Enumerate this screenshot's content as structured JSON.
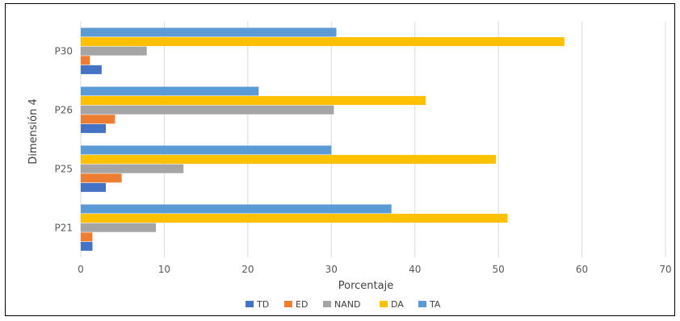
{
  "chart_data": {
    "type": "bar",
    "orientation": "horizontal",
    "title": "",
    "xlabel": "Porcentaje",
    "ylabel": "Dimensión 4",
    "xlim": [
      0,
      70
    ],
    "xticks": [
      "0",
      "10",
      "20",
      "30",
      "40",
      "50",
      "60",
      "70"
    ],
    "categories": [
      "P21",
      "P25",
      "P26",
      "P30"
    ],
    "grid": "vertical",
    "legend_position": "bottom",
    "series": [
      {
        "name": "TD",
        "color": "#4472C4",
        "values": [
          1.4,
          3.0,
          3.0,
          2.5
        ]
      },
      {
        "name": "ED",
        "color": "#ED7D31",
        "values": [
          1.4,
          4.9,
          4.1,
          1.1
        ]
      },
      {
        "name": "NAND",
        "color": "#A5A5A5",
        "values": [
          9.0,
          12.3,
          30.3,
          7.9
        ]
      },
      {
        "name": "DA",
        "color": "#FFC000",
        "values": [
          51.1,
          49.7,
          41.3,
          57.9
        ]
      },
      {
        "name": "TA",
        "color": "#5B9BD5",
        "values": [
          37.2,
          30.0,
          21.3,
          30.6
        ]
      }
    ]
  }
}
